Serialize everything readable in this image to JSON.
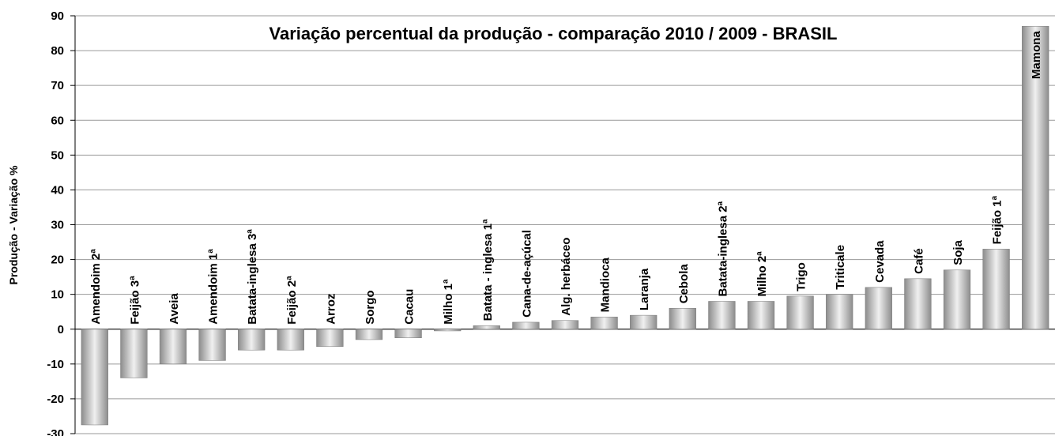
{
  "chart_data": {
    "type": "bar",
    "title": "Variação percentual  da produção - comparação  2010 / 2009 -  BRASIL",
    "y_label": "Produção - Variação %",
    "categories": [
      "Amendoim 2ª",
      "Feijão 3ª",
      "Aveia",
      "Amendoim 1ª",
      "Batata-inglesa 3ª",
      "Feijão 2ª",
      "Arroz",
      "Sorgo",
      "Cacau",
      "Milho 1ª",
      "Batata - inglesa 1ª",
      "Cana-de-açúcal",
      "Alg. herbáceo",
      "Mandioca",
      "Laranja",
      "Cebola",
      "Batata-inglesa 2ª",
      "Milho 2ª",
      "Trigo",
      "Triticale",
      "Cevada",
      "Café",
      "Soja",
      "Feijão 1ª",
      "Mamona"
    ],
    "values": [
      -27.5,
      -14,
      -10,
      -9,
      -6,
      -6,
      -5,
      -3,
      -2.5,
      -0.5,
      1,
      2,
      2.5,
      3.5,
      4,
      6,
      8,
      8,
      9.5,
      10,
      12,
      14.5,
      17,
      23,
      87
    ],
    "color": "#8c8c8c",
    "ylim": [
      -30,
      90
    ],
    "yticks": [
      -30,
      -20,
      -10,
      0,
      10,
      20,
      30,
      40,
      50,
      60,
      70,
      80,
      90
    ],
    "grid": true
  }
}
